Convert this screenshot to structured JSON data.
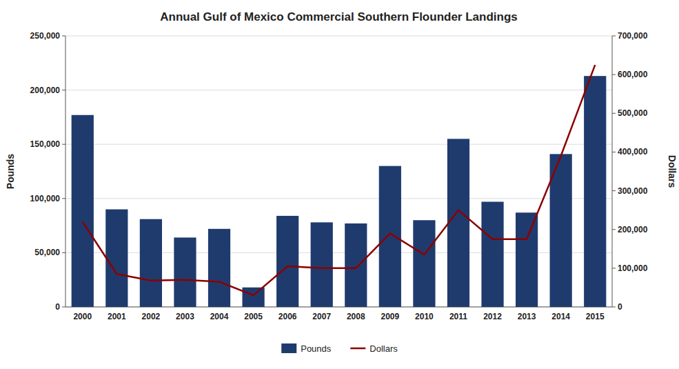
{
  "chart_data": {
    "type": "bar",
    "title": "Annual Gulf of Mexico Commercial Southern Flounder Landings",
    "categories": [
      "2000",
      "2001",
      "2002",
      "2003",
      "2004",
      "2005",
      "2006",
      "2007",
      "2008",
      "2009",
      "2010",
      "2011",
      "2012",
      "2013",
      "2014",
      "2015"
    ],
    "series": [
      {
        "name": "Pounds",
        "type": "bar",
        "color": "#1F3B6E",
        "values": [
          177000,
          90000,
          81000,
          64000,
          72000,
          18000,
          84000,
          78000,
          77000,
          130000,
          80000,
          155000,
          97000,
          87000,
          141000,
          213000
        ]
      },
      {
        "name": "Dollars",
        "type": "line",
        "axis": "y2",
        "color": "#8B0000",
        "values": [
          220000,
          85000,
          68000,
          70000,
          65000,
          30000,
          105000,
          100000,
          100000,
          190000,
          135000,
          250000,
          175000,
          175000,
          390000,
          625000
        ]
      }
    ],
    "ylabel": "Pounds",
    "y2label": "Dollars",
    "ylim": [
      0,
      250000
    ],
    "yticks": [
      0,
      {
        "value": 50000,
        "label": "50,000"
      },
      {
        "value": 100000,
        "label": "100,000"
      },
      {
        "value": 150000,
        "label": "150,000"
      },
      {
        "value": 200000,
        "label": "200,000"
      },
      {
        "value": 250000,
        "label": "250,000"
      }
    ],
    "y2lim": [
      0,
      700000
    ],
    "y2ticks": [
      0,
      {
        "value": 100000,
        "label": "100,000"
      },
      {
        "value": 200000,
        "label": "200,000"
      },
      {
        "value": 300000,
        "label": "300,000"
      },
      {
        "value": 400000,
        "label": "400,000"
      },
      {
        "value": 500000,
        "label": "500,000"
      },
      {
        "value": 600000,
        "label": "600,000"
      },
      {
        "value": 700000,
        "label": "700,000"
      }
    ],
    "grid": true,
    "legend": "bottom"
  }
}
